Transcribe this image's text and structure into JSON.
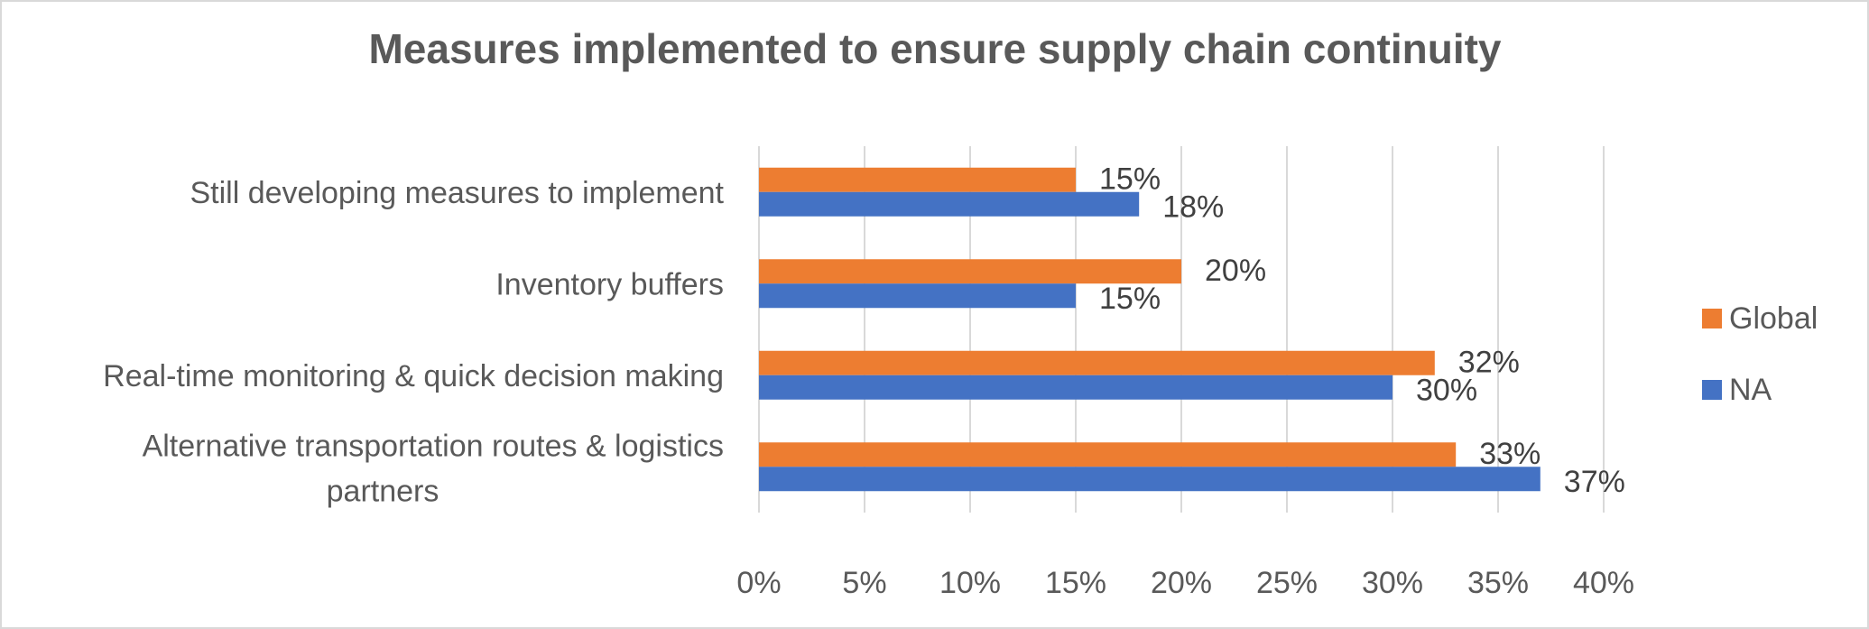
{
  "chart_data": {
    "type": "bar",
    "orientation": "horizontal",
    "title": "Measures implemented to ensure supply chain continuity",
    "categories": [
      "Still developing measures to implement",
      "Inventory buffers",
      "Real-time monitoring & quick decision making",
      "Alternative transportation routes & logistics partners"
    ],
    "series": [
      {
        "name": "Global",
        "color": "#ED7D31",
        "values": [
          15,
          20,
          32,
          33
        ]
      },
      {
        "name": "NA",
        "color": "#4472C4",
        "values": [
          18,
          15,
          30,
          37
        ]
      }
    ],
    "data_labels": {
      "Global": [
        "15%",
        "20%",
        "32%",
        "33%"
      ],
      "NA": [
        "18%",
        "15%",
        "30%",
        "37%"
      ]
    },
    "xlim": [
      0,
      40
    ],
    "x_ticks": [
      "0%",
      "5%",
      "10%",
      "15%",
      "20%",
      "25%",
      "30%",
      "35%",
      "40%"
    ],
    "grid": true,
    "legend_position": "right"
  }
}
